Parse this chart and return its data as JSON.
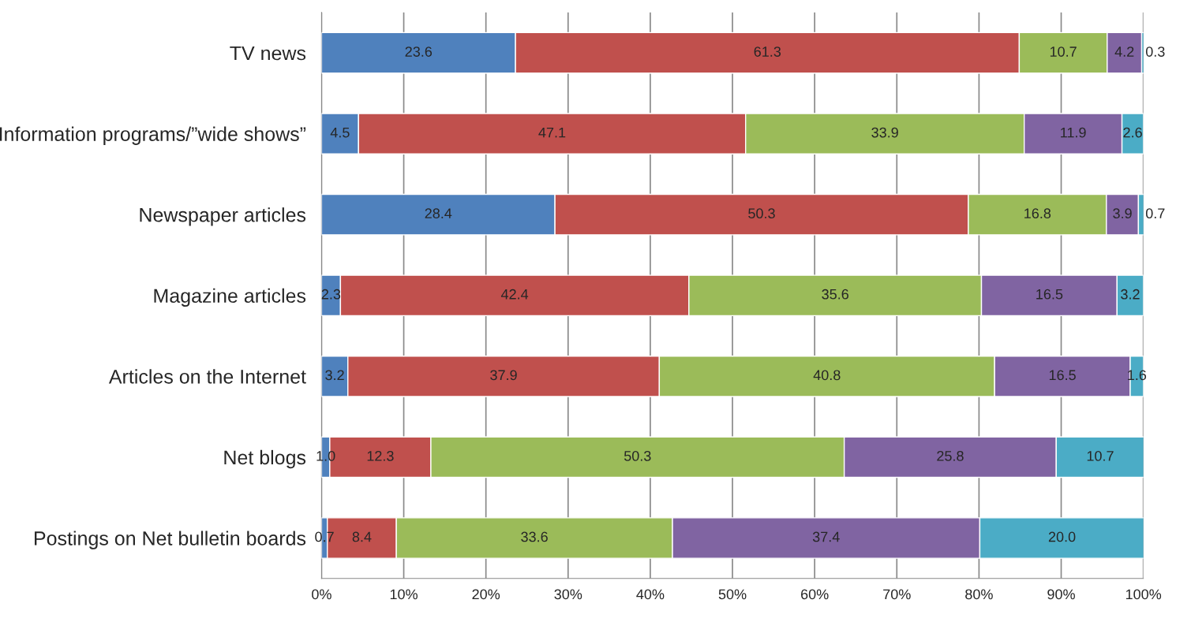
{
  "chart_data": {
    "type": "bar",
    "orientation": "horizontal",
    "stacked": true,
    "grid": "x",
    "categories": [
      "TV news",
      "Information programs/”wide shows”",
      "Newspaper articles",
      "Magazine articles",
      "Articles on the Internet",
      "Net blogs",
      "Postings on Net bulletin boards"
    ],
    "series": [
      {
        "color": "#4f81bd",
        "values": [
          23.6,
          4.5,
          28.4,
          2.3,
          3.2,
          1.0,
          0.7
        ],
        "value_labels": [
          "23.6",
          "4.5",
          "28.4",
          "2.3",
          "3.2",
          "1.0",
          "0.7"
        ]
      },
      {
        "color": "#c0504d",
        "values": [
          61.3,
          47.1,
          50.3,
          42.4,
          37.9,
          12.3,
          8.4
        ],
        "value_labels": [
          "61.3",
          "47.1",
          "50.3",
          "42.4",
          "37.9",
          "12.3",
          "8.4"
        ]
      },
      {
        "color": "#9bbb59",
        "values": [
          10.7,
          33.9,
          16.8,
          35.6,
          40.8,
          50.3,
          33.6
        ],
        "value_labels": [
          "10.7",
          "33.9",
          "16.8",
          "35.6",
          "40.8",
          "50.3",
          "33.6"
        ]
      },
      {
        "color": "#8064a2",
        "values": [
          4.2,
          11.9,
          3.9,
          16.5,
          16.5,
          25.8,
          37.4
        ],
        "value_labels": [
          "4.2",
          "11.9",
          "3.9",
          "16.5",
          "16.5",
          "25.8",
          "37.4"
        ]
      },
      {
        "color": "#4bacc6",
        "values": [
          0.3,
          2.6,
          0.7,
          3.2,
          1.6,
          10.7,
          20.0
        ],
        "value_labels": [
          "0.3",
          "2.6",
          "0.7",
          "3.2",
          "1.6",
          "10.7",
          "20.0"
        ]
      }
    ],
    "xlim": [
      0,
      100
    ],
    "xticks": [
      {
        "value": 0,
        "label": "0%"
      },
      {
        "value": 10,
        "label": "10%"
      },
      {
        "value": 20,
        "label": "20%"
      },
      {
        "value": 30,
        "label": "30%"
      },
      {
        "value": 40,
        "label": "40%"
      },
      {
        "value": 50,
        "label": "50%"
      },
      {
        "value": 60,
        "label": "60%"
      },
      {
        "value": 70,
        "label": "70%"
      },
      {
        "value": 80,
        "label": "80%"
      },
      {
        "value": 90,
        "label": "90%"
      },
      {
        "value": 100,
        "label": "100%"
      }
    ]
  }
}
